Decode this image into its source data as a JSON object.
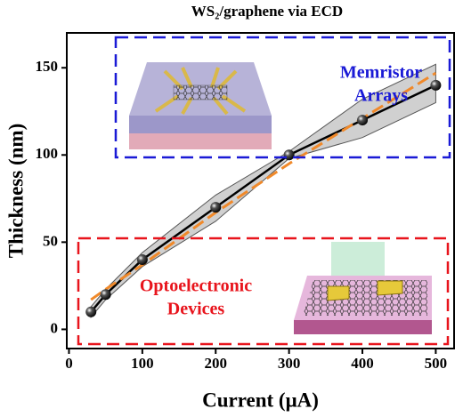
{
  "chart_data": {
    "type": "line",
    "title": "WS₂/graphene via ECD",
    "xlabel": "Current (μA)",
    "ylabel": "Thickness (nm)",
    "x": [
      30,
      50,
      100,
      200,
      300,
      400,
      500
    ],
    "series": [
      {
        "color": "#000000",
        "values": [
          10,
          20,
          40,
          70,
          100,
          120,
          140
        ]
      },
      {
        "color": "#f0892a",
        "values": [
          17,
          23,
          37,
          67,
          95,
          121,
          147
        ]
      }
    ],
    "band": {
      "color": "#a9a9a9",
      "upper": [
        13,
        23,
        44,
        77,
        102,
        132,
        152
      ],
      "lower": [
        7,
        17,
        36,
        62,
        98,
        110,
        130
      ]
    },
    "annotations": [
      {
        "lines": [
          "Memristor",
          "Arrays"
        ],
        "color": "#1a1ad6"
      },
      {
        "lines": [
          "Optoelectronic",
          "Devices"
        ],
        "color": "#e8141c"
      }
    ],
    "xlim": [
      -3,
      525
    ],
    "ylim": [
      -11,
      170
    ],
    "xticks": [
      0,
      100,
      200,
      300,
      400,
      500
    ],
    "yticks": [
      0,
      50,
      100,
      150
    ]
  }
}
